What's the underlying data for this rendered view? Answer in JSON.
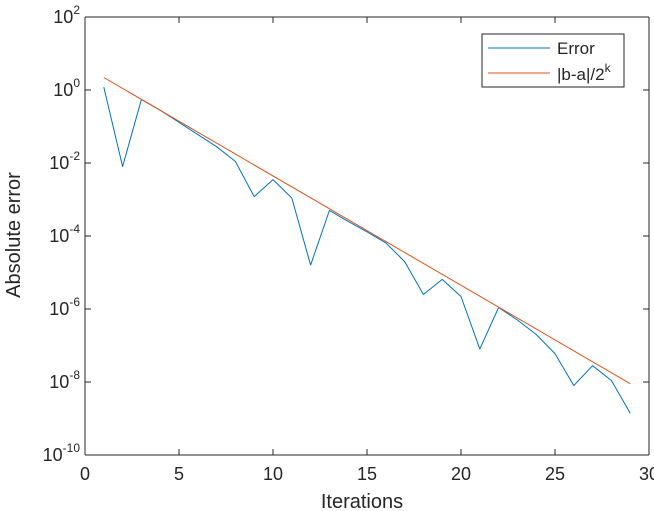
{
  "chart_data": {
    "type": "line",
    "xlabel": "Iterations",
    "ylabel": "Absolute error",
    "xlim": [
      0,
      30
    ],
    "ylim": [
      1e-10,
      100
    ],
    "yscale": "log",
    "grid": false,
    "legend_position": "top-right",
    "x_ticks": [
      0,
      5,
      10,
      15,
      20,
      25,
      30
    ],
    "x_tick_labels": [
      "0",
      "5",
      "10",
      "15",
      "20",
      "25",
      "30"
    ],
    "y_ticks": [
      1e-10,
      1e-08,
      1e-06,
      0.0001,
      0.01,
      1,
      100
    ],
    "y_tick_labels": [
      {
        "base": "10",
        "exp": "-10"
      },
      {
        "base": "10",
        "exp": "-8"
      },
      {
        "base": "10",
        "exp": "-6"
      },
      {
        "base": "10",
        "exp": "-4"
      },
      {
        "base": "10",
        "exp": "-2"
      },
      {
        "base": "10",
        "exp": "0"
      },
      {
        "base": "10",
        "exp": "2"
      }
    ],
    "series": [
      {
        "name": "Error",
        "color": "#0072BD",
        "x": [
          1,
          2,
          3,
          4,
          5,
          6,
          7,
          8,
          9,
          10,
          11,
          12,
          13,
          14,
          15,
          16,
          17,
          18,
          19,
          20,
          21,
          22,
          23,
          24,
          25,
          26,
          27,
          28,
          29
        ],
        "y": [
          1.2,
          0.008,
          0.55,
          0.28,
          0.13,
          0.06,
          0.028,
          0.011,
          0.0012,
          0.0035,
          0.0011,
          1.6e-05,
          0.0005,
          0.00025,
          0.00013,
          6.5e-05,
          2e-05,
          2.5e-06,
          6.5e-06,
          2.2e-06,
          8e-08,
          1.1e-06,
          5e-07,
          2e-07,
          6e-08,
          8e-09,
          2.8e-08,
          1.1e-08,
          1.4e-09
        ]
      },
      {
        "name": "|b-a|/2^k",
        "color": "#D95319",
        "x": [
          1,
          29
        ],
        "y": [
          2.2,
          9e-09
        ]
      }
    ],
    "legend": {
      "entries": [
        {
          "label": "Error",
          "color": "#0072BD",
          "sup": ""
        },
        {
          "label": "|b-a|/2",
          "color": "#D95319",
          "sup": "k"
        }
      ]
    }
  }
}
